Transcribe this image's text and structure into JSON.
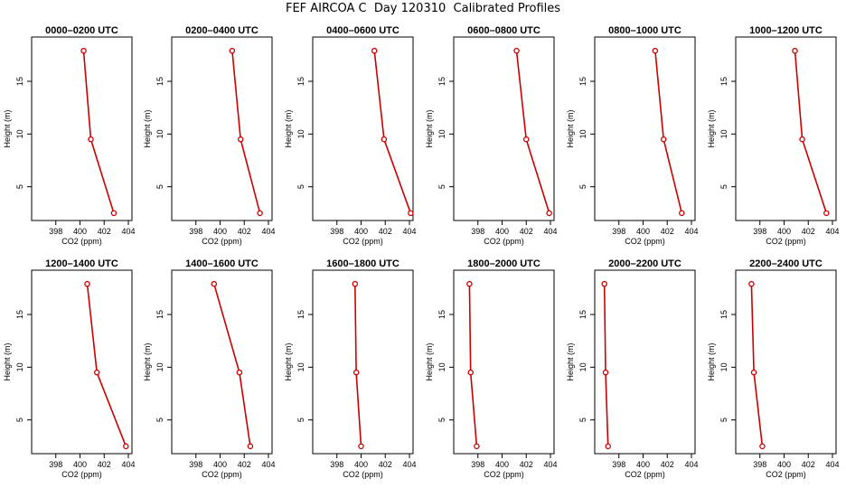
{
  "title": "FEF AIRCOA C  Day 120310  Calibrated Profiles",
  "colors": {
    "line": "#cc0000",
    "axis": "#000000"
  },
  "chart_data": {
    "type": "line",
    "xlabel": "CO2 (ppm)",
    "ylabel": "Height (m)",
    "xlim": [
      396,
      404.3
    ],
    "ylim": [
      1.8,
      19.2
    ],
    "x_ticks": [
      398,
      400,
      402,
      404
    ],
    "y_ticks": [
      5,
      10,
      15
    ],
    "heights": [
      17.9,
      9.5,
      2.5
    ],
    "panels": [
      {
        "title": "0000–0200 UTC",
        "co2": [
          400.3,
          400.9,
          402.8
        ]
      },
      {
        "title": "0200–0400 UTC",
        "co2": [
          401.0,
          401.7,
          403.3
        ]
      },
      {
        "title": "0400–0600 UTC",
        "co2": [
          401.1,
          401.9,
          404.1
        ]
      },
      {
        "title": "0600–0800 UTC",
        "co2": [
          401.2,
          402.0,
          403.9
        ]
      },
      {
        "title": "0800–1000 UTC",
        "co2": [
          401.0,
          401.7,
          403.2
        ]
      },
      {
        "title": "1000–1200 UTC",
        "co2": [
          400.9,
          401.5,
          403.5
        ]
      },
      {
        "title": "1200–1400 UTC",
        "co2": [
          400.6,
          401.4,
          403.8
        ]
      },
      {
        "title": "1400–1600 UTC",
        "co2": [
          399.5,
          401.6,
          402.5
        ]
      },
      {
        "title": "1600–1800 UTC",
        "co2": [
          399.5,
          399.6,
          400.0
        ]
      },
      {
        "title": "1800–2000 UTC",
        "co2": [
          397.3,
          397.4,
          397.9
        ]
      },
      {
        "title": "2000–2200 UTC",
        "co2": [
          396.8,
          396.9,
          397.1
        ]
      },
      {
        "title": "2200–2400 UTC",
        "co2": [
          397.3,
          397.5,
          398.2
        ]
      }
    ]
  }
}
